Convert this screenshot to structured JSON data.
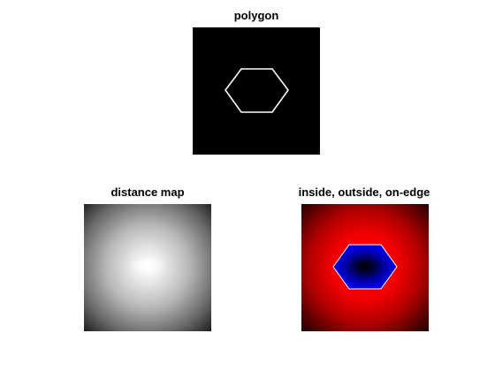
{
  "panels": {
    "polygon": {
      "title": "polygon"
    },
    "distance_map": {
      "title": "distance map"
    },
    "inside_outside": {
      "title": "inside, outside, on-edge"
    }
  },
  "colors": {
    "figure_background": "#ffffff",
    "polygon_background": "#000000",
    "polygon_edge": "#ffffff",
    "outside_fill": "#ff0000",
    "inside_fill": "#0000ff",
    "distance_max": "#ffffff",
    "distance_min": "#000000"
  }
}
